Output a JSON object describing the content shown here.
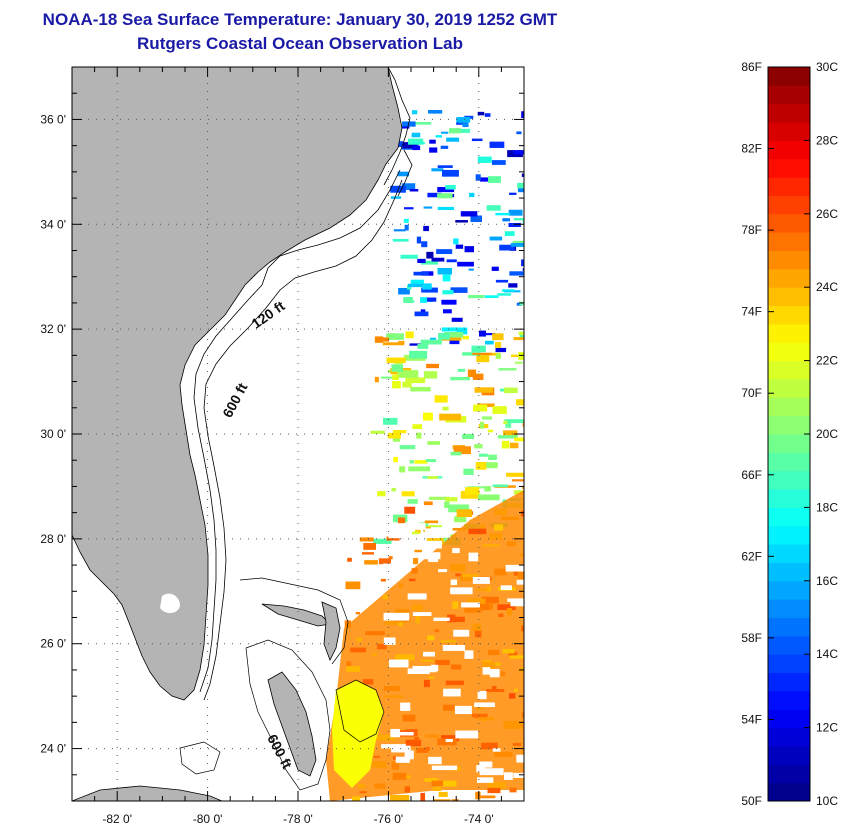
{
  "header": {
    "title": "NOAA-18 Sea Surface Temperature:  January 30, 2019 1252 GMT",
    "subtitle": "Rutgers Coastal Ocean Observation Lab"
  },
  "map": {
    "lon_range": [
      -83.0,
      -73.0
    ],
    "lat_range": [
      23.0,
      37.0
    ],
    "lon_ticks": [
      {
        "value": -82,
        "label": "-82 0'"
      },
      {
        "value": -80,
        "label": "-80 0'"
      },
      {
        "value": -78,
        "label": "-78 0'"
      },
      {
        "value": -76,
        "label": "-76 0'"
      },
      {
        "value": -74,
        "label": "-74 0'"
      }
    ],
    "lat_ticks": [
      {
        "value": 24,
        "label": "24 0'"
      },
      {
        "value": 26,
        "label": "26 0'"
      },
      {
        "value": 28,
        "label": "28 0'"
      },
      {
        "value": 30,
        "label": "30 0'"
      },
      {
        "value": 32,
        "label": "32 0'"
      },
      {
        "value": 34,
        "label": "34 0'"
      },
      {
        "value": 36,
        "label": "36 0'"
      }
    ],
    "depth_labels": [
      {
        "text": "120 ft",
        "lon": -78.6,
        "lat": 32.2,
        "rotate": -35
      },
      {
        "text": "600 ft",
        "lon": -79.3,
        "lat": 30.6,
        "rotate": -62
      },
      {
        "text": "600 ft",
        "lon": -78.5,
        "lat": 23.9,
        "rotate": 62
      }
    ],
    "land_color": "#b4b4b4",
    "grid": true
  },
  "colorbar": {
    "min_c": 10,
    "max_c": 30,
    "f_labels": [
      "86F",
      "82F",
      "78F",
      "74F",
      "70F",
      "66F",
      "62F",
      "58F",
      "54F",
      "50F"
    ],
    "c_labels": [
      "30C",
      "28C",
      "26C",
      "24C",
      "22C",
      "20C",
      "18C",
      "16C",
      "14C",
      "12C",
      "10C"
    ]
  }
}
